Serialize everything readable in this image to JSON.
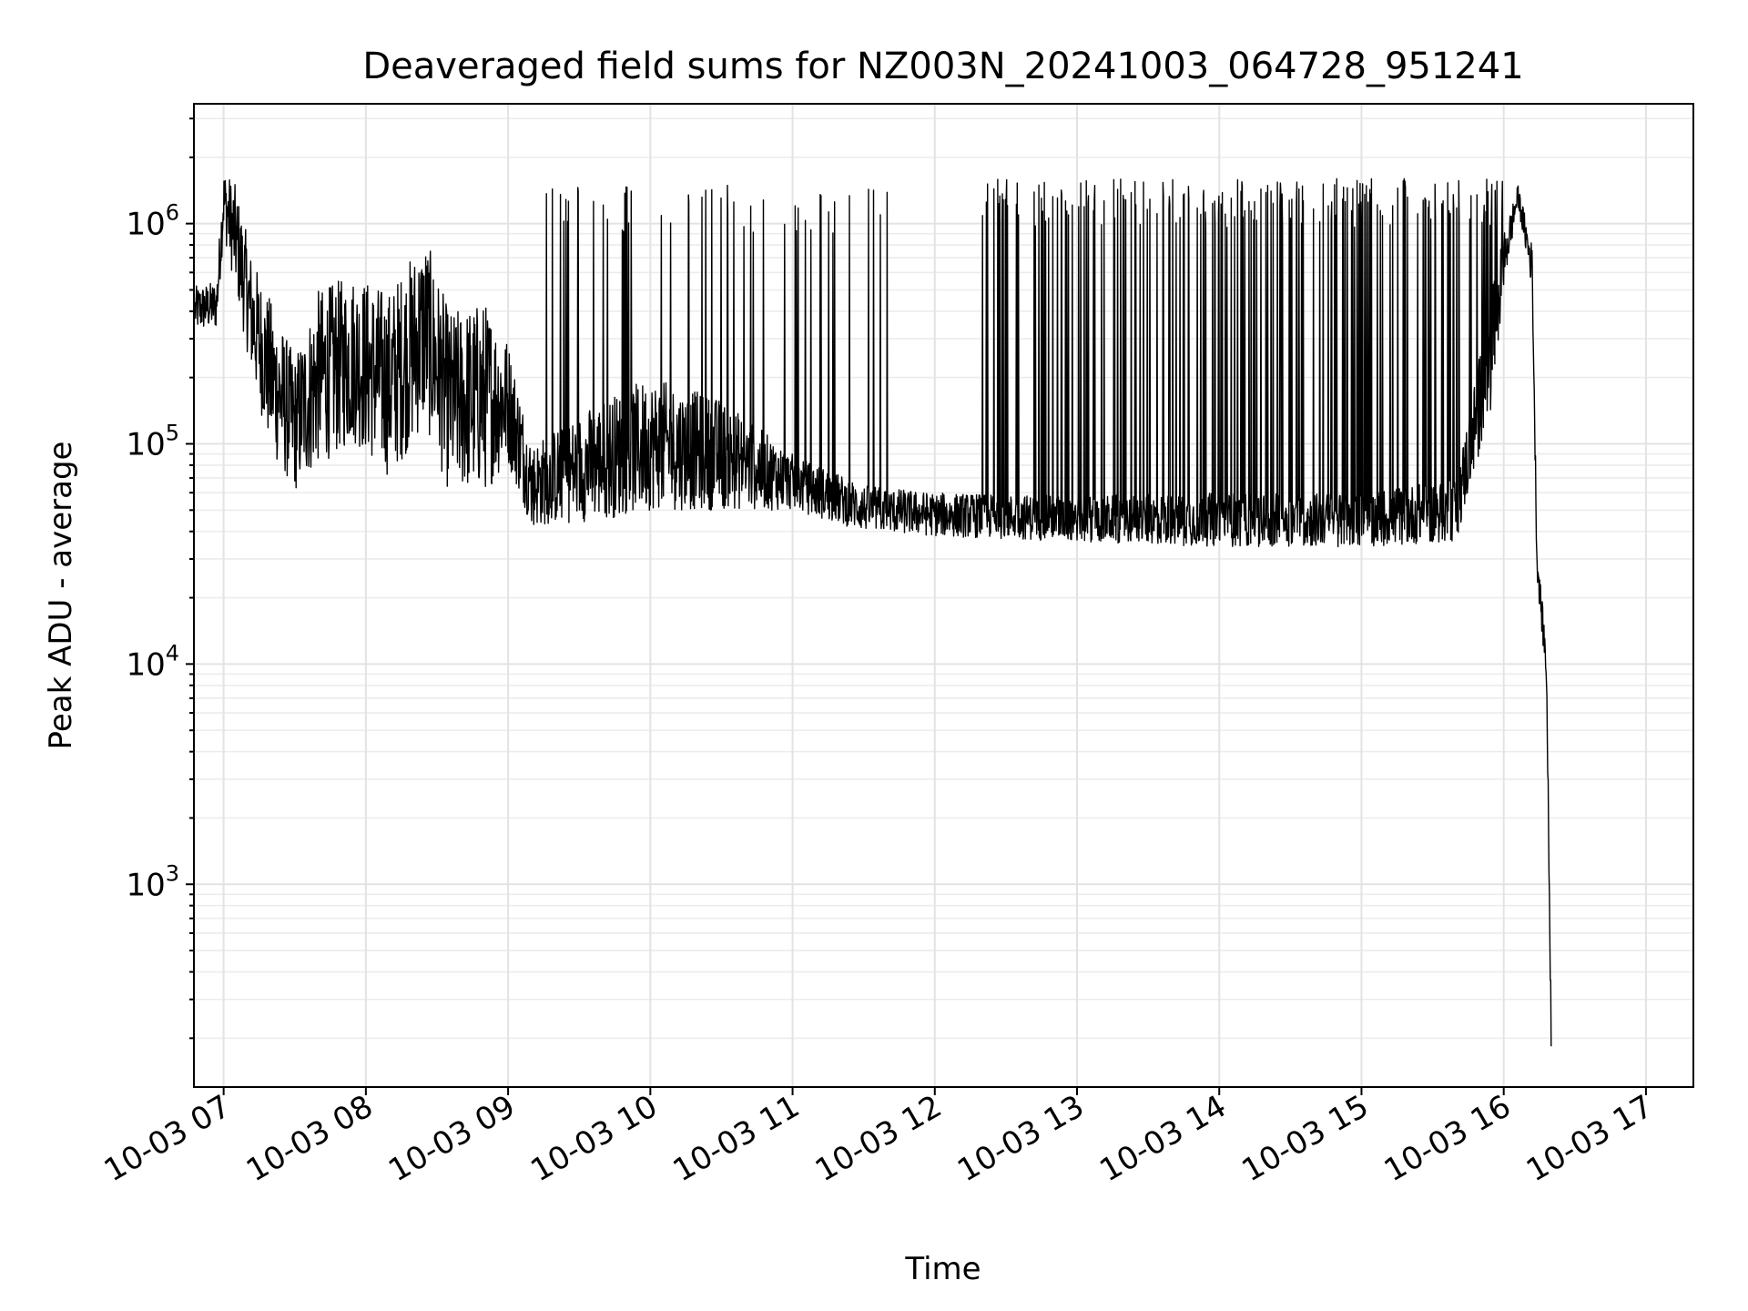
{
  "chart_data": {
    "type": "line",
    "title": "Deaveraged field sums for NZ003N_20241003_064728_951241",
    "xlabel": "Time",
    "ylabel": "Peak ADU - average",
    "yscale": "log",
    "ylim": [
      120,
      3500000
    ],
    "xlim": [
      "2024-10-03 06:47:28",
      "2024-10-03 17:20:00"
    ],
    "x_ticks": [
      {
        "t": "2024-10-03 07:00",
        "label": "10-03 07"
      },
      {
        "t": "2024-10-03 08:00",
        "label": "10-03 08"
      },
      {
        "t": "2024-10-03 09:00",
        "label": "10-03 09"
      },
      {
        "t": "2024-10-03 10:00",
        "label": "10-03 10"
      },
      {
        "t": "2024-10-03 11:00",
        "label": "10-03 11"
      },
      {
        "t": "2024-10-03 12:00",
        "label": "10-03 12"
      },
      {
        "t": "2024-10-03 13:00",
        "label": "10-03 13"
      },
      {
        "t": "2024-10-03 14:00",
        "label": "10-03 14"
      },
      {
        "t": "2024-10-03 15:00",
        "label": "10-03 15"
      },
      {
        "t": "2024-10-03 16:00",
        "label": "10-03 16"
      },
      {
        "t": "2024-10-03 17:00",
        "label": "10-03 17"
      }
    ],
    "y_ticks": [
      {
        "value": 1000,
        "base": "10",
        "exp": "3"
      },
      {
        "value": 10000,
        "base": "10",
        "exp": "4"
      },
      {
        "value": 100000,
        "base": "10",
        "exp": "5"
      },
      {
        "value": 1000000,
        "base": "10",
        "exp": "6"
      }
    ],
    "grid": true,
    "line_color": "#000000",
    "series": [
      {
        "baseline_envelope": [
          {
            "t": "2024-10-03 06:48",
            "low": 320000,
            "high": 520000
          },
          {
            "t": "2024-10-03 06:57",
            "low": 330000,
            "high": 550000
          },
          {
            "t": "2024-10-03 07:00",
            "low": 900000,
            "high": 1800000
          },
          {
            "t": "2024-10-03 07:05",
            "low": 500000,
            "high": 1500000
          },
          {
            "t": "2024-10-03 07:12",
            "low": 200000,
            "high": 700000
          },
          {
            "t": "2024-10-03 07:20",
            "low": 90000,
            "high": 450000
          },
          {
            "t": "2024-10-03 07:30",
            "low": 60000,
            "high": 250000
          },
          {
            "t": "2024-10-03 07:40",
            "low": 80000,
            "high": 500000
          },
          {
            "t": "2024-10-03 07:55",
            "low": 100000,
            "high": 600000
          },
          {
            "t": "2024-10-03 08:10",
            "low": 70000,
            "high": 500000
          },
          {
            "t": "2024-10-03 08:25",
            "low": 120000,
            "high": 900000
          },
          {
            "t": "2024-10-03 08:35",
            "low": 60000,
            "high": 400000
          },
          {
            "t": "2024-10-03 08:50",
            "low": 60000,
            "high": 450000
          },
          {
            "t": "2024-10-03 09:00",
            "low": 80000,
            "high": 300000
          },
          {
            "t": "2024-10-03 09:10",
            "low": 42000,
            "high": 100000
          },
          {
            "t": "2024-10-03 09:40",
            "low": 45000,
            "high": 160000
          },
          {
            "t": "2024-10-03 10:00",
            "low": 50000,
            "high": 200000
          },
          {
            "t": "2024-10-03 10:30",
            "low": 50000,
            "high": 160000
          },
          {
            "t": "2024-10-03 11:00",
            "low": 50000,
            "high": 90000
          },
          {
            "t": "2024-10-03 11:30",
            "low": 40000,
            "high": 65000
          },
          {
            "t": "2024-10-03 12:00",
            "low": 38000,
            "high": 60000
          },
          {
            "t": "2024-10-03 13:00",
            "low": 36000,
            "high": 58000
          },
          {
            "t": "2024-10-03 14:00",
            "low": 34000,
            "high": 60000
          },
          {
            "t": "2024-10-03 15:00",
            "low": 34000,
            "high": 60000
          },
          {
            "t": "2024-10-03 15:40",
            "low": 36000,
            "high": 70000
          },
          {
            "t": "2024-10-03 15:55",
            "low": 150000,
            "high": 500000
          },
          {
            "t": "2024-10-03 16:00",
            "low": 500000,
            "high": 900000
          },
          {
            "t": "2024-10-03 16:06",
            "low": 1200000,
            "high": 1500000
          },
          {
            "t": "2024-10-03 16:12",
            "low": 500000,
            "high": 800000
          },
          {
            "t": "2024-10-03 16:14",
            "low": 25000,
            "high": 35000
          },
          {
            "t": "2024-10-03 16:18",
            "low": 8000,
            "high": 12000
          },
          {
            "t": "2024-10-03 16:20",
            "low": 180,
            "high": 300
          }
        ],
        "spikes": [
          {
            "from": "2024-10-03 09:10",
            "to": "2024-10-03 11:40",
            "count": 55,
            "peak": 1500000
          },
          {
            "from": "2024-10-03 12:20",
            "to": "2024-10-03 16:00",
            "count": 210,
            "peak": 1600000
          }
        ]
      }
    ]
  }
}
